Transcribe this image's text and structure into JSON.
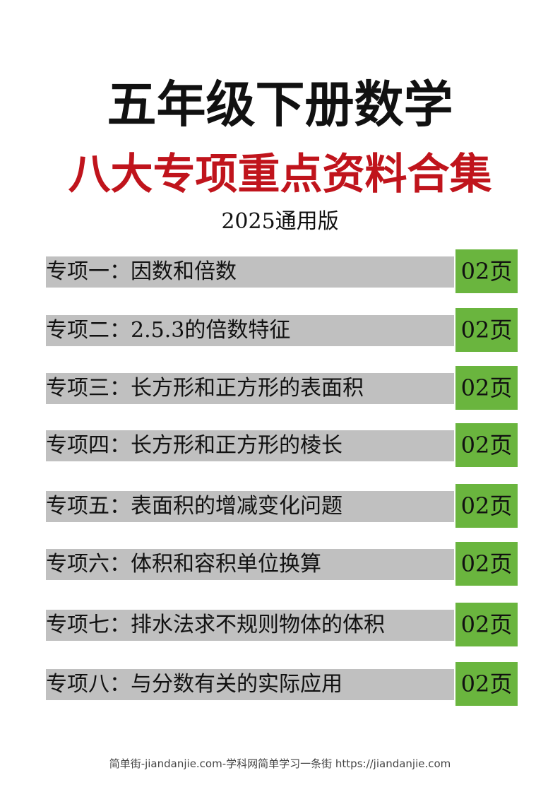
{
  "header": {
    "title": "五年级下册数学",
    "subtitle": "八大专项重点资料合集",
    "edition": "2025通用版"
  },
  "items": [
    {
      "label": "专项一：因数和倍数",
      "page": "02页"
    },
    {
      "label": "专项二：2.5.3的倍数特征",
      "page": "02页"
    },
    {
      "label": "专项三：长方形和正方形的表面积",
      "page": "02页"
    },
    {
      "label": "专项四：长方形和正方形的棱长",
      "page": "02页"
    },
    {
      "label": "专项五：表面积的增减变化问题",
      "page": "02页"
    },
    {
      "label": "专项六：体积和容积单位换算",
      "page": "02页"
    },
    {
      "label": "专项七：排水法求不规则物体的体积",
      "page": "02页"
    },
    {
      "label": "专项八：与分数有关的实际应用",
      "page": "02页"
    }
  ],
  "footer": "简单街-jiandanjie.com-学科网简单学习一条街 https://jiandanjie.com"
}
